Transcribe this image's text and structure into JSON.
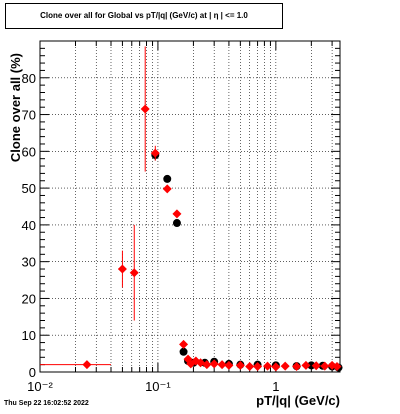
{
  "chart_data": {
    "type": "scatter",
    "title": "Clone  over all for Global vs pT/|q| (GeV/c) at |  η | <= 1.0",
    "xlabel": "pT/|q| (GeV/c)",
    "ylabel": "Clone  over all (%)",
    "xscale": "log",
    "xlim": [
      0.01,
      3.5
    ],
    "ylim": [
      0,
      90
    ],
    "grid": true,
    "x_tick_labels": [
      "10⁻²",
      "10⁻¹",
      "1"
    ],
    "y_tick_labels": [
      "0",
      "10",
      "20",
      "30",
      "40",
      "50",
      "60",
      "70",
      "80"
    ],
    "series": [
      {
        "color": "#000000",
        "marker": "circle",
        "points": [
          {
            "x": 0.095,
            "y": 59.0,
            "xerr": 0.006,
            "yerr": 1.5
          },
          {
            "x": 0.12,
            "y": 52.5,
            "xerr": 0.006,
            "yerr": 1.0
          },
          {
            "x": 0.145,
            "y": 40.5,
            "xerr": 0.006,
            "yerr": 1.0
          },
          {
            "x": 0.165,
            "y": 5.5,
            "xerr": 0.005,
            "yerr": 0.6
          },
          {
            "x": 0.18,
            "y": 3.0,
            "xerr": 0.005,
            "yerr": 0.4
          },
          {
            "x": 0.2,
            "y": 2.5,
            "xerr": 0.005,
            "yerr": 0.3
          },
          {
            "x": 0.25,
            "y": 2.5,
            "xerr": 0.01,
            "yerr": 0.3
          },
          {
            "x": 0.3,
            "y": 2.8,
            "xerr": 0.01,
            "yerr": 0.3
          },
          {
            "x": 0.4,
            "y": 2.2,
            "xerr": 0.01,
            "yerr": 0.3
          },
          {
            "x": 0.5,
            "y": 2.0,
            "xerr": 0.01,
            "yerr": 0.3
          },
          {
            "x": 0.7,
            "y": 2.0,
            "xerr": 0.02,
            "yerr": 0.3
          },
          {
            "x": 1.0,
            "y": 1.8,
            "xerr": 0.03,
            "yerr": 0.3
          },
          {
            "x": 1.5,
            "y": 1.6,
            "xerr": 0.04,
            "yerr": 0.3
          },
          {
            "x": 2.0,
            "y": 1.8,
            "xerr": 0.05,
            "yerr": 0.3
          },
          {
            "x": 2.5,
            "y": 1.7,
            "xerr": 0.06,
            "yerr": 0.3
          },
          {
            "x": 3.0,
            "y": 1.5,
            "xerr": 0.08,
            "yerr": 0.3
          },
          {
            "x": 3.4,
            "y": 1.2,
            "xerr": 0.08,
            "yerr": 0.3
          }
        ]
      },
      {
        "color": "#ff0000",
        "marker": "diamond",
        "points": [
          {
            "x": 0.025,
            "y": 2.0,
            "xerr": 0.015,
            "yerr": 0.6
          },
          {
            "x": 0.05,
            "y": 28.0,
            "xerr": 0.004,
            "yerr": 5.0
          },
          {
            "x": 0.063,
            "y": 27.0,
            "xerr": 0.004,
            "yerr": 13.0
          },
          {
            "x": 0.078,
            "y": 71.5,
            "xerr": 0.004,
            "yerr": 17.0
          },
          {
            "x": 0.095,
            "y": 59.5,
            "xerr": 0.006,
            "yerr": 2.0
          },
          {
            "x": 0.12,
            "y": 49.8,
            "xerr": 0.006,
            "yerr": 1.0
          },
          {
            "x": 0.145,
            "y": 43.0,
            "xerr": 0.006,
            "yerr": 1.0
          },
          {
            "x": 0.165,
            "y": 7.5,
            "xerr": 0.005,
            "yerr": 0.8
          },
          {
            "x": 0.18,
            "y": 3.5,
            "xerr": 0.005,
            "yerr": 0.5
          },
          {
            "x": 0.19,
            "y": 2.2,
            "xerr": 0.005,
            "yerr": 0.4
          },
          {
            "x": 0.21,
            "y": 3.0,
            "xerr": 0.005,
            "yerr": 0.4
          },
          {
            "x": 0.23,
            "y": 2.5,
            "xerr": 0.006,
            "yerr": 0.4
          },
          {
            "x": 0.26,
            "y": 2.0,
            "xerr": 0.007,
            "yerr": 0.3
          },
          {
            "x": 0.3,
            "y": 2.2,
            "xerr": 0.008,
            "yerr": 0.3
          },
          {
            "x": 0.35,
            "y": 2.0,
            "xerr": 0.01,
            "yerr": 0.3
          },
          {
            "x": 0.4,
            "y": 1.8,
            "xerr": 0.01,
            "yerr": 0.3
          },
          {
            "x": 0.5,
            "y": 1.8,
            "xerr": 0.01,
            "yerr": 0.3
          },
          {
            "x": 0.6,
            "y": 1.5,
            "xerr": 0.015,
            "yerr": 0.3
          },
          {
            "x": 0.7,
            "y": 1.5,
            "xerr": 0.015,
            "yerr": 0.3
          },
          {
            "x": 0.85,
            "y": 1.6,
            "xerr": 0.02,
            "yerr": 0.3
          },
          {
            "x": 1.0,
            "y": 1.4,
            "xerr": 0.025,
            "yerr": 0.3
          },
          {
            "x": 1.2,
            "y": 1.6,
            "xerr": 0.03,
            "yerr": 0.3
          },
          {
            "x": 1.5,
            "y": 1.5,
            "xerr": 0.04,
            "yerr": 0.3
          },
          {
            "x": 1.8,
            "y": 1.8,
            "xerr": 0.045,
            "yerr": 0.3
          },
          {
            "x": 2.2,
            "y": 1.7,
            "xerr": 0.05,
            "yerr": 0.3
          },
          {
            "x": 2.6,
            "y": 1.6,
            "xerr": 0.06,
            "yerr": 0.3
          },
          {
            "x": 3.0,
            "y": 1.8,
            "xerr": 0.08,
            "yerr": 0.3
          },
          {
            "x": 3.3,
            "y": 1.5,
            "xerr": 0.08,
            "yerr": 0.3
          }
        ]
      }
    ]
  },
  "footer": "Thu Sep 22 16:02:52 2022"
}
